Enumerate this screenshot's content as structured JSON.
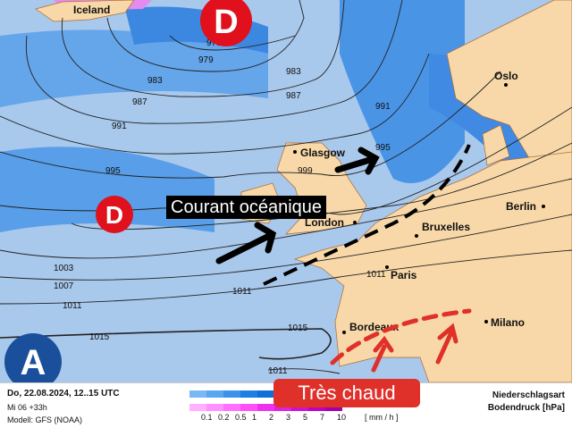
{
  "map": {
    "cities": [
      {
        "name": "Iceland"
      },
      {
        "name": "Oslo"
      },
      {
        "name": "Glasgow"
      },
      {
        "name": "London"
      },
      {
        "name": "Bruxelles"
      },
      {
        "name": "Berlin"
      },
      {
        "name": "Paris"
      },
      {
        "name": "Bordeaux"
      },
      {
        "name": "Milano"
      }
    ],
    "isobars": [
      "975",
      "979",
      "983",
      "983",
      "987",
      "987",
      "991",
      "991",
      "995",
      "995",
      "999",
      "1003",
      "1007",
      "1011",
      "1011",
      "1011",
      "1015",
      "1015",
      "1011"
    ],
    "pressure_centers": [
      {
        "letter": "D",
        "type": "low",
        "color": "#e0101c"
      },
      {
        "letter": "D",
        "type": "low",
        "color": "#e0101c"
      },
      {
        "letter": "A",
        "type": "high",
        "color": "#1a4f9c"
      }
    ],
    "annotations": {
      "current": "Courant océanique",
      "hot": "Très chaud"
    },
    "colors": {
      "sea": "#a8c8ec",
      "land": "#f8d8a8",
      "rain_light": "#7fb4ee",
      "rain_mid": "#3e8fe6",
      "rain_heavy": "#1a6fd6",
      "snow": "#f080f0"
    }
  },
  "footer": {
    "datetime": "Do, 22.08.2024, 12..15 UTC",
    "run": "Mi 06 +33h",
    "model": "Modell: GFS (NOAA)",
    "legend_title1": "Niederschlagsart",
    "legend_title2": "Bodendruck [hPa]",
    "scale": [
      "0.1",
      "0.2",
      "0.5",
      "1",
      "2",
      "3",
      "5",
      "7",
      "10"
    ],
    "unit": "[ mm / h ]",
    "rain_colors": [
      "#7ab8f5",
      "#5aa6f0",
      "#3a92ea",
      "#1e7fe2",
      "#0f6ed8",
      "#0a60c8",
      "#0852b8",
      "#0645a8",
      "#053898"
    ],
    "snow_colors": [
      "#ffb0ff",
      "#ff90ff",
      "#ff70ff",
      "#ff50f8",
      "#f030f0",
      "#e020e0",
      "#d010d0",
      "#c000c0",
      "#a000a8"
    ]
  }
}
